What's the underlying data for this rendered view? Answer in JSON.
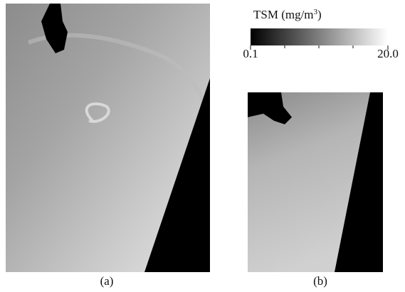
{
  "colorbar": {
    "title": "TSM (mg/m",
    "title_sup": "3",
    "title_end": ")",
    "min_label": "0.1",
    "max_label": "20.0"
  },
  "panels": [
    {
      "label": "(a)"
    },
    {
      "label": "(b)"
    }
  ]
}
